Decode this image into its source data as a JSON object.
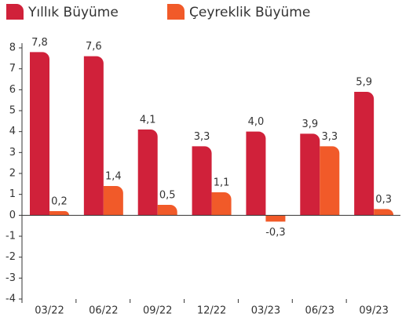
{
  "chart_data": {
    "type": "bar",
    "categories": [
      "03/22",
      "06/22",
      "09/22",
      "12/22",
      "03/23",
      "06/23",
      "09/23"
    ],
    "series": [
      {
        "name": "Yıllık Büyüme",
        "color": "#d0213a",
        "values": [
          7.8,
          7.6,
          4.1,
          3.3,
          4.0,
          3.9,
          5.9
        ],
        "value_labels": [
          "7,8",
          "7,6",
          "4,1",
          "3,3",
          "4,0",
          "3,9",
          "5,9"
        ]
      },
      {
        "name": "Çeyreklik Büyüme",
        "color": "#f15a29",
        "values": [
          0.2,
          1.4,
          0.5,
          1.1,
          -0.3,
          3.3,
          0.3
        ],
        "value_labels": [
          "0,2",
          "1,4",
          "0,5",
          "1,1",
          "-0,3",
          "3,3",
          "0,3"
        ]
      }
    ],
    "ylim": [
      -4,
      8
    ],
    "yticks": [
      -4,
      -3,
      -2,
      -1,
      0,
      1,
      2,
      3,
      4,
      5,
      6,
      7,
      8
    ],
    "legend": "top"
  }
}
